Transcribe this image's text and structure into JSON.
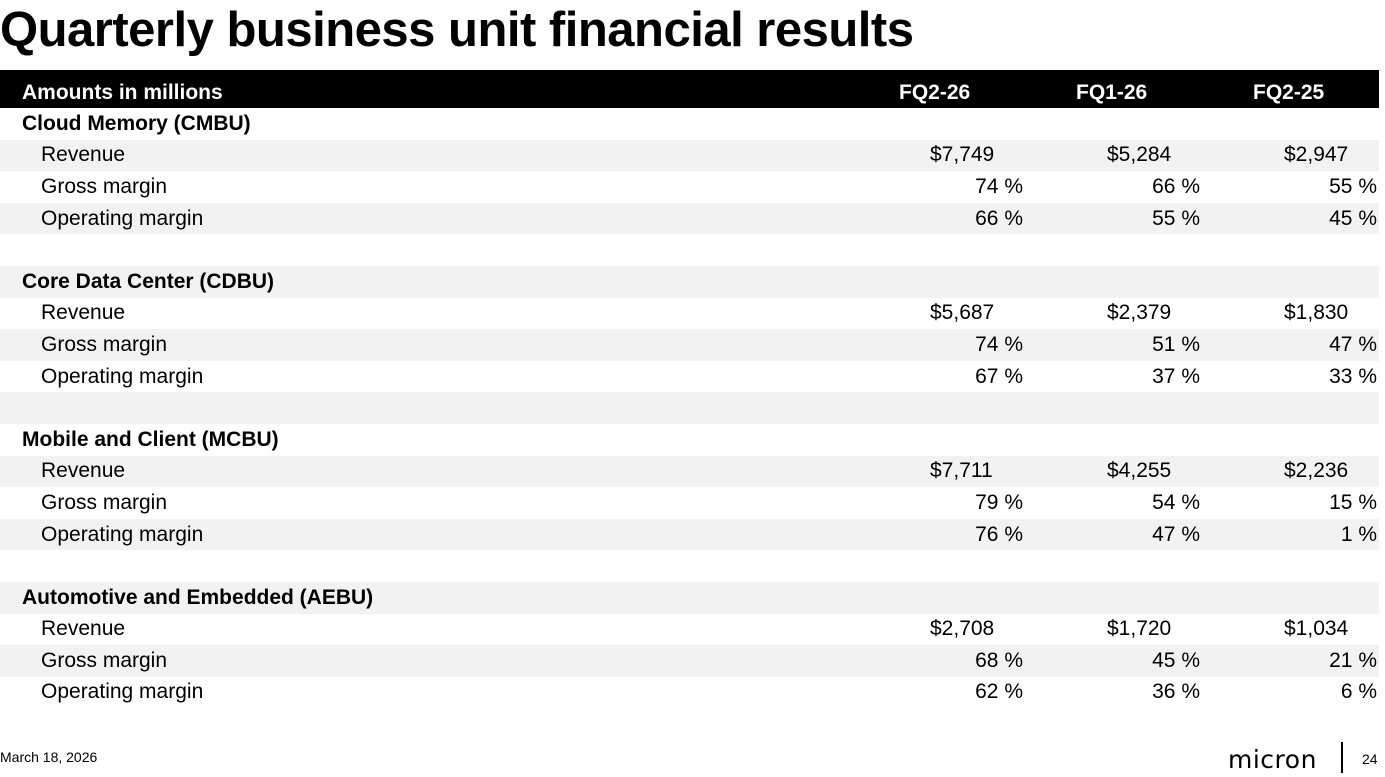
{
  "title": "Quarterly business unit financial results",
  "table": {
    "header_label": "Amounts in millions",
    "columns": [
      "FQ2-26",
      "FQ1-26",
      "FQ2-25"
    ],
    "sections": [
      {
        "name": "Cloud Memory (CMBU)",
        "rows": [
          {
            "label": "Revenue",
            "values": [
              "$7,749",
              "$5,284",
              "$2,947"
            ]
          },
          {
            "label": "Gross margin",
            "values": [
              "74 %",
              "66 %",
              "55 %"
            ]
          },
          {
            "label": "Operating margin",
            "values": [
              "66 %",
              "55 %",
              "45 %"
            ]
          }
        ]
      },
      {
        "name": "Core Data Center (CDBU)",
        "rows": [
          {
            "label": "Revenue",
            "values": [
              "$5,687",
              "$2,379",
              "$1,830"
            ]
          },
          {
            "label": "Gross margin",
            "values": [
              "74 %",
              "51 %",
              "47 %"
            ]
          },
          {
            "label": "Operating margin",
            "values": [
              "67 %",
              "37 %",
              "33 %"
            ]
          }
        ]
      },
      {
        "name": "Mobile and Client (MCBU)",
        "rows": [
          {
            "label": "Revenue",
            "values": [
              "$7,711",
              "$4,255",
              "$2,236"
            ]
          },
          {
            "label": "Gross margin",
            "values": [
              "79 %",
              "54 %",
              "15 %"
            ]
          },
          {
            "label": "Operating margin",
            "values": [
              "76 %",
              "47 %",
              "1 %"
            ]
          }
        ]
      },
      {
        "name": "Automotive and Embedded (AEBU)",
        "rows": [
          {
            "label": "Revenue",
            "values": [
              "$2,708",
              "$1,720",
              "$1,034"
            ]
          },
          {
            "label": "Gross margin",
            "values": [
              "68 %",
              "45 %",
              "21 %"
            ]
          },
          {
            "label": "Operating margin",
            "values": [
              "62 %",
              "36 %",
              "6 %"
            ]
          }
        ]
      }
    ]
  },
  "footer": {
    "date": "March 18, 2026",
    "logo_text": "micron",
    "page_number": "24"
  }
}
